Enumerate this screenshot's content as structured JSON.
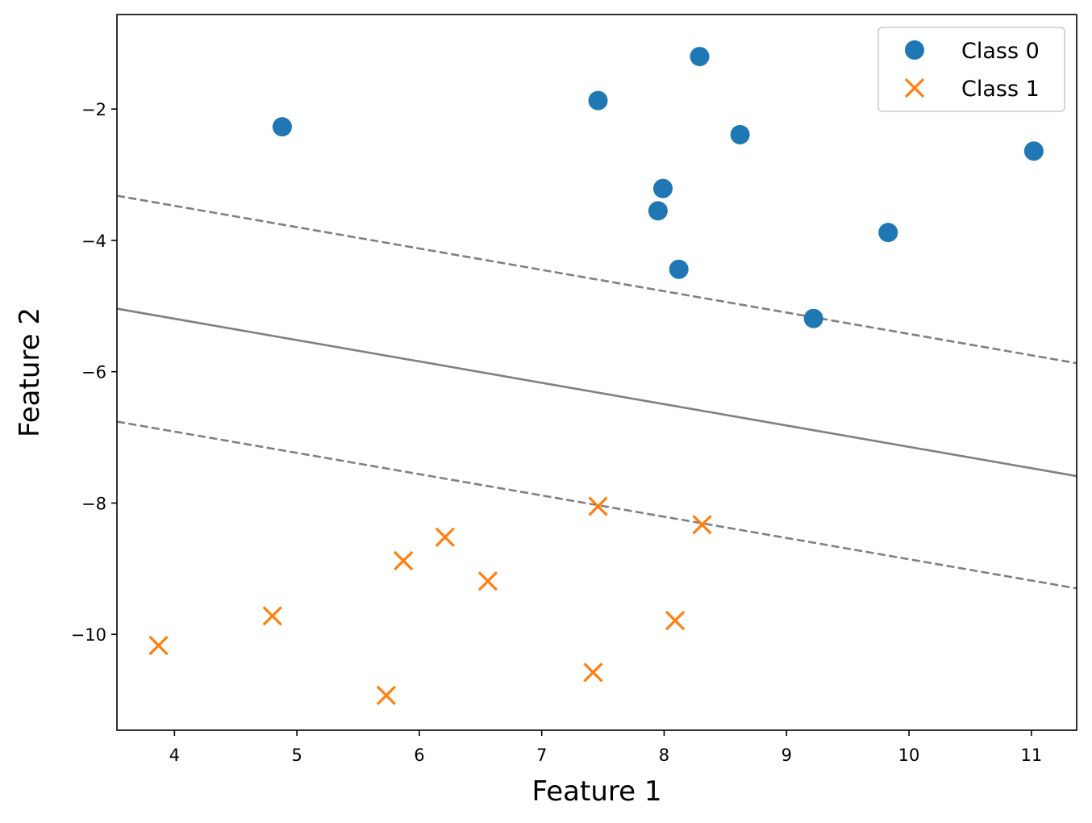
{
  "chart_data": {
    "type": "scatter",
    "xlabel": "Feature 1",
    "ylabel": "Feature 2",
    "xlim": [
      3.53,
      11.37
    ],
    "ylim": [
      -11.46,
      -0.56
    ],
    "x_ticks": [
      4,
      5,
      6,
      7,
      8,
      9,
      10,
      11
    ],
    "y_ticks": [
      -2,
      -4,
      -6,
      -8,
      -10
    ],
    "y_tick_labels": [
      "−2",
      "−4",
      "−6",
      "−8",
      "−10"
    ],
    "grid": false,
    "legend_position": "top-right",
    "series": [
      {
        "name": "Class 0",
        "marker": "circle",
        "color": "#1f77b4",
        "points": [
          [
            4.88,
            -2.27
          ],
          [
            7.46,
            -1.87
          ],
          [
            8.29,
            -1.2
          ],
          [
            8.62,
            -2.39
          ],
          [
            11.02,
            -2.64
          ],
          [
            7.99,
            -3.21
          ],
          [
            7.95,
            -3.55
          ],
          [
            8.12,
            -4.44
          ],
          [
            9.83,
            -3.88
          ],
          [
            9.22,
            -5.19
          ]
        ]
      },
      {
        "name": "Class 1",
        "marker": "x",
        "color": "#ff7f0e",
        "points": [
          [
            3.87,
            -10.17
          ],
          [
            4.8,
            -9.72
          ],
          [
            5.73,
            -10.93
          ],
          [
            5.87,
            -8.88
          ],
          [
            6.21,
            -8.52
          ],
          [
            6.56,
            -9.19
          ],
          [
            7.46,
            -8.05
          ],
          [
            8.31,
            -8.33
          ],
          [
            8.09,
            -9.79
          ],
          [
            7.42,
            -10.58
          ]
        ]
      }
    ],
    "lines": [
      {
        "role": "decision-boundary",
        "style": "solid",
        "color": "#808080",
        "x": [
          3.53,
          11.37
        ],
        "y": [
          -5.04,
          -7.59
        ]
      },
      {
        "role": "margin-upper",
        "style": "dashed",
        "color": "#808080",
        "x": [
          3.53,
          11.37
        ],
        "y": [
          -3.32,
          -5.87
        ]
      },
      {
        "role": "margin-lower",
        "style": "dashed",
        "color": "#808080",
        "x": [
          3.53,
          11.37
        ],
        "y": [
          -6.76,
          -9.3
        ]
      }
    ]
  }
}
